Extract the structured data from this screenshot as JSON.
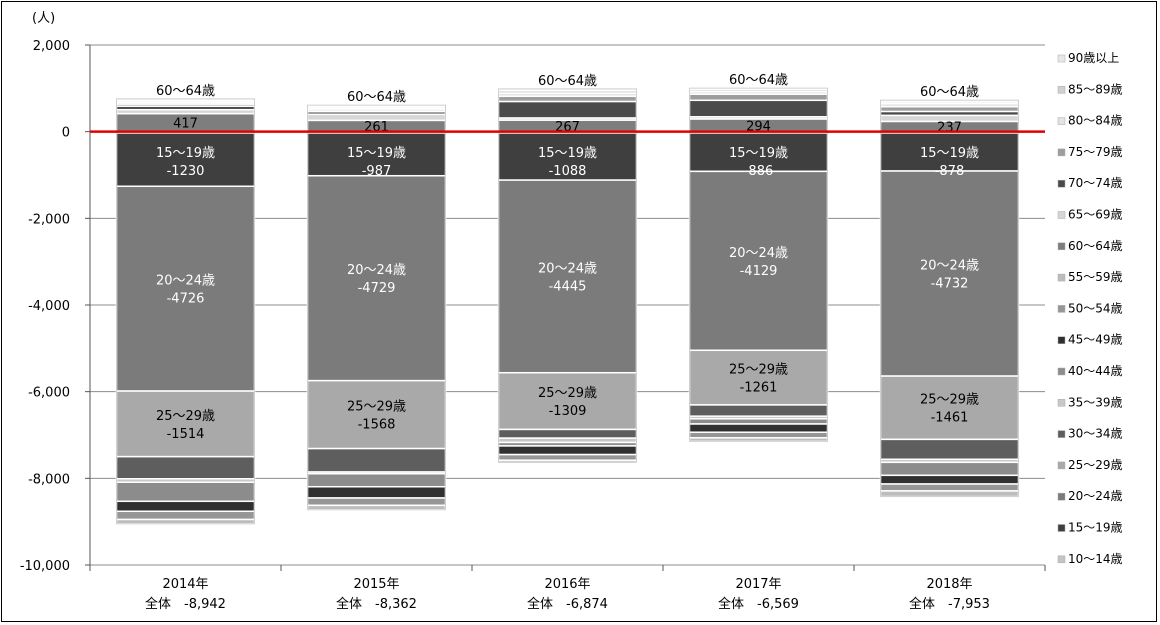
{
  "chart_data": {
    "type": "bar",
    "stacked": true,
    "title": "",
    "unit_label": "(人)",
    "ylim": [
      -10000,
      2000
    ],
    "y_ticks": [
      2000,
      0,
      -2000,
      -4000,
      -6000,
      -8000,
      -10000
    ],
    "y_tick_labels": [
      "2,000",
      "0",
      "-2,000",
      "-4,000",
      "-6,000",
      "-8,000",
      "-10,000"
    ],
    "grid": true,
    "zero_line_color": "#e00000",
    "legend_position": "right",
    "categories": [
      {
        "year": "2014年",
        "total_label": "全体　-8,942"
      },
      {
        "year": "2015年",
        "total_label": "全体　-8,362"
      },
      {
        "year": "2016年",
        "total_label": "全体　-6,874"
      },
      {
        "year": "2017年",
        "total_label": "全体　-6,569"
      },
      {
        "year": "2018年",
        "total_label": "全体　-7,953"
      }
    ],
    "series": [
      {
        "name": "10～14歳",
        "color": "#c4c4c4",
        "values": [
          -30,
          -30,
          -30,
          -30,
          -30
        ]
      },
      {
        "name": "15～19歳",
        "color": "#3f3f3f",
        "values": [
          -1230,
          -987,
          -1088,
          -886,
          -878
        ]
      },
      {
        "name": "20～24歳",
        "color": "#7b7b7b",
        "values": [
          -4726,
          -4729,
          -4445,
          -4129,
          -4732
        ]
      },
      {
        "name": "25～29歳",
        "color": "#a9a9a9",
        "values": [
          -1514,
          -1568,
          -1309,
          -1261,
          -1461
        ]
      },
      {
        "name": "30～34歳",
        "color": "#5e5e5e",
        "values": [
          -510,
          -540,
          -200,
          -260,
          -460
        ]
      },
      {
        "name": "35～39歳",
        "color": "#c8c8c8",
        "values": [
          -80,
          -40,
          -100,
          -60,
          -70
        ]
      },
      {
        "name": "40～44歳",
        "color": "#8c8c8c",
        "values": [
          -440,
          -300,
          -80,
          -120,
          -300
        ]
      },
      {
        "name": "45～49歳",
        "color": "#303030",
        "values": [
          -230,
          -260,
          -200,
          -190,
          -200
        ]
      },
      {
        "name": "50～54歳",
        "color": "#969696",
        "values": [
          -190,
          -170,
          -130,
          -130,
          -160
        ]
      },
      {
        "name": "55～59歳",
        "color": "#bcbcbc",
        "values": [
          -100,
          -100,
          -50,
          -80,
          -130
        ]
      },
      {
        "name": "60～64歳",
        "color": "#7e7e7e",
        "values": [
          417,
          261,
          267,
          294,
          237
        ]
      },
      {
        "name": "65～69歳",
        "color": "#d6d6d6",
        "values": [
          90,
          140,
          50,
          50,
          140
        ]
      },
      {
        "name": "70～74歳",
        "color": "#4a4a4a",
        "values": [
          80,
          60,
          380,
          380,
          90
        ]
      },
      {
        "name": "75～79歳",
        "color": "#9d9d9d",
        "values": [
          50,
          40,
          120,
          140,
          110
        ]
      },
      {
        "name": "80～84歳",
        "color": "#e3e3e3",
        "values": [
          40,
          40,
          70,
          60,
          70
        ]
      },
      {
        "name": "85～89歳",
        "color": "#d0d0d0",
        "values": [
          40,
          40,
          60,
          50,
          40
        ]
      },
      {
        "name": "90歳以上",
        "color": "#e8e8e8",
        "values": [
          40,
          30,
          40,
          30,
          40
        ]
      }
    ],
    "data_labels": [
      {
        "series": "60～64歳",
        "values": [
          "417",
          "261",
          "267",
          "294",
          "237"
        ]
      },
      {
        "series": "15～19歳",
        "values": [
          "-1230",
          "-987",
          "-1088",
          "-886",
          "-878"
        ]
      },
      {
        "series": "20～24歳",
        "values": [
          "-4726",
          "-4729",
          "-4445",
          "-4129",
          "-4732"
        ]
      },
      {
        "series": "25～29歳",
        "values": [
          "-1514",
          "-1568",
          "-1309",
          "-1261",
          "-1461"
        ]
      }
    ]
  }
}
